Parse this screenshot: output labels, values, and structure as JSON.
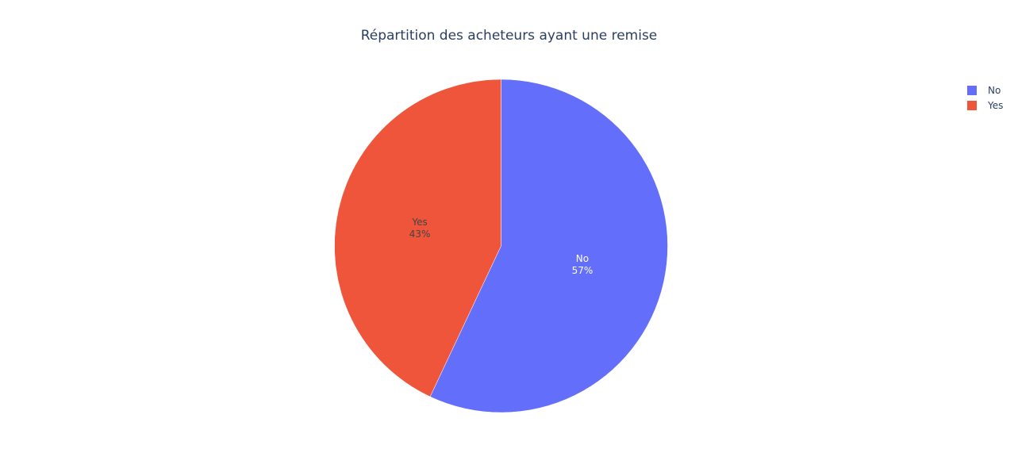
{
  "chart_data": {
    "type": "pie",
    "title": "Répartition des acheteurs ayant une remise",
    "slices": [
      {
        "label": "No",
        "value": 57,
        "percent_label": "57%",
        "color": "#636efa",
        "text_color": "#ffffff"
      },
      {
        "label": "Yes",
        "value": 43,
        "percent_label": "43%",
        "color": "#ef553b",
        "text_color": "#444444"
      }
    ],
    "direction": "clockwise",
    "start_angle": "top",
    "legend": {
      "position": "top-right",
      "items": [
        "No",
        "Yes"
      ]
    }
  }
}
